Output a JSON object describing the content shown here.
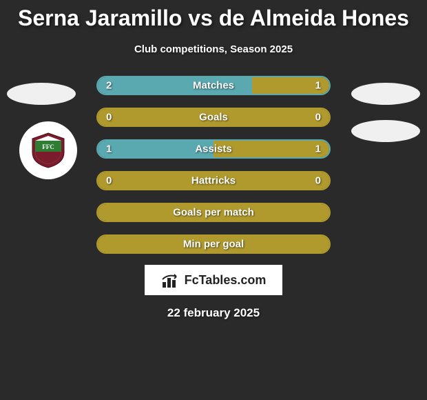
{
  "header": {
    "title": "Serna Jaramillo vs de Almeida Hones",
    "subtitle": "Club competitions, Season 2025"
  },
  "colors": {
    "left_accent": "#5aa8b0",
    "right_accent": "#b09a2e",
    "row_border_teal": "#5aa8b0",
    "row_border_olive": "#b09a2e",
    "empty_fill": "#b09a2e",
    "text": "#ffffff"
  },
  "stats": [
    {
      "label": "Matches",
      "left_value": "2",
      "right_value": "1",
      "left_fill_pct": 66.7,
      "left_color": "#5aa8b0",
      "right_color": "#b09a2e",
      "border_color": "#5aa8b0"
    },
    {
      "label": "Goals",
      "left_value": "0",
      "right_value": "0",
      "left_fill_pct": 50,
      "left_color": "#b09a2e",
      "right_color": "#b09a2e",
      "border_color": "#b09a2e"
    },
    {
      "label": "Assists",
      "left_value": "1",
      "right_value": "1",
      "left_fill_pct": 50,
      "left_color": "#5aa8b0",
      "right_color": "#b09a2e",
      "border_color": "#5aa8b0"
    },
    {
      "label": "Hattricks",
      "left_value": "0",
      "right_value": "0",
      "left_fill_pct": 50,
      "left_color": "#b09a2e",
      "right_color": "#b09a2e",
      "border_color": "#b09a2e"
    },
    {
      "label": "Goals per match",
      "left_value": "",
      "right_value": "",
      "left_fill_pct": 100,
      "left_color": "#b09a2e",
      "right_color": "#b09a2e",
      "border_color": "#b09a2e"
    },
    {
      "label": "Min per goal",
      "left_value": "",
      "right_value": "",
      "left_fill_pct": 100,
      "left_color": "#b09a2e",
      "right_color": "#b09a2e",
      "border_color": "#b09a2e"
    }
  ],
  "footer": {
    "brand": "FcTables.com",
    "date": "22 february 2025"
  },
  "club_badge": {
    "shield_outer": "#7a1c2c",
    "shield_green": "#2e7d32",
    "shield_text": "FFC"
  }
}
